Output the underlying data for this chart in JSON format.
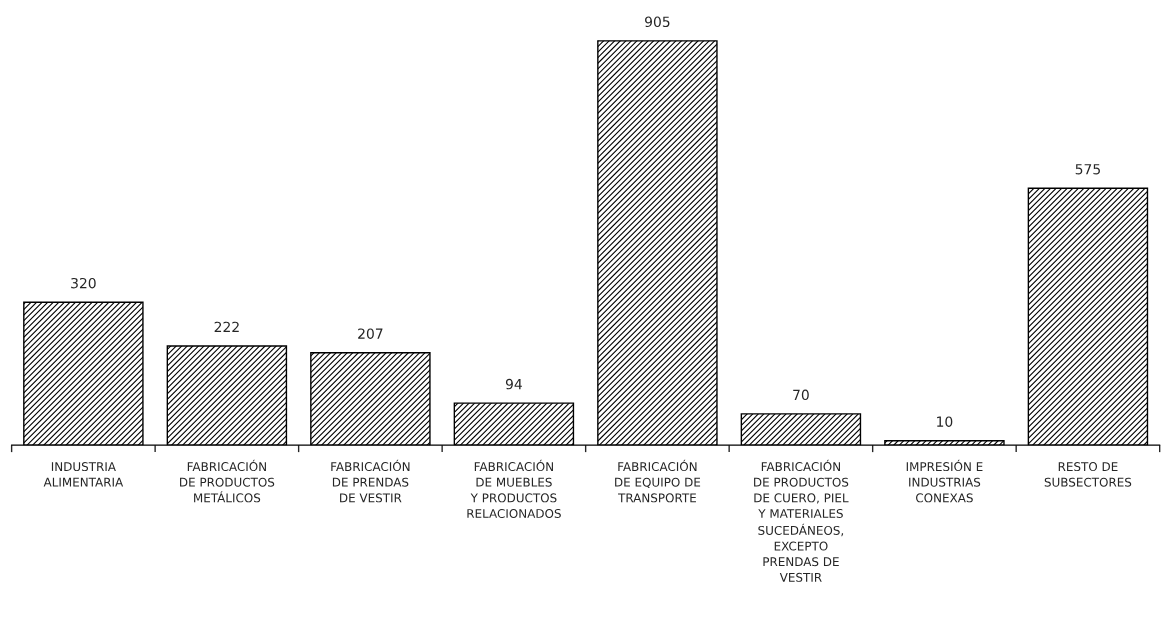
{
  "chart_data": {
    "type": "bar",
    "categories": [
      "INDUSTRIA\nALIMENTARIA",
      "FABRICACIÓN\nDE PRODUCTOS\nMETÁLICOS",
      "FABRICACIÓN\nDE PRENDAS\nDE VESTIR",
      "FABRICACIÓN\nDE MUEBLES\nY PRODUCTOS\nRELACIONADOS",
      "FABRICACIÓN\nDE EQUIPO DE\nTRANSPORTE",
      "FABRICACIÓN\nDE PRODUCTOS\nDE CUERO, PIEL\nY MATERIALES\nSUCEDÁNEOS,\nEXCEPTO\nPRENDAS DE\nVESTIR",
      "IMPRESIÓN E\nINDUSTRIAS\nCONEXAS",
      "RESTO DE\nSUBSECTORES"
    ],
    "values": [
      320,
      222,
      207,
      94,
      905,
      70,
      10,
      575
    ],
    "color": "#000000",
    "data_labels": true,
    "grid": false,
    "legend": false
  }
}
